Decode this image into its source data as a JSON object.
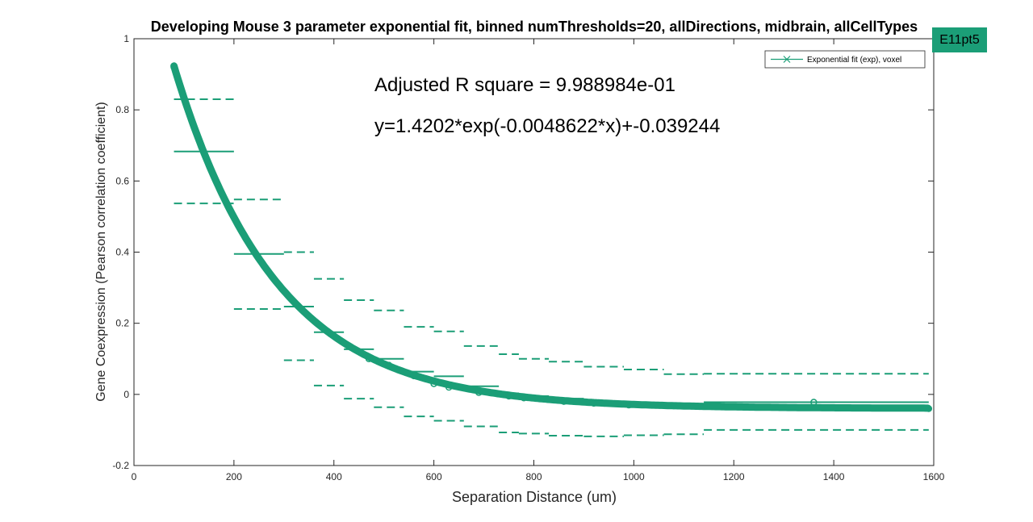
{
  "badge": {
    "label": "E11pt5",
    "color": "#1b9e77"
  },
  "chart_data": {
    "type": "line",
    "title": "Developing Mouse 3 parameter exponential fit, binned numThresholds=20, allDirections, midbrain, allCellTypes",
    "xlabel": "Separation Distance (um)",
    "ylabel": "Gene Coexpression (Pearson correlation coefficient)",
    "xlim": [
      0,
      1600
    ],
    "ylim": [
      -0.2,
      1
    ],
    "xticks": [
      0,
      200,
      400,
      600,
      800,
      1000,
      1200,
      1400,
      1600
    ],
    "yticks": [
      -0.2,
      0,
      0.2,
      0.4,
      0.6,
      0.8,
      1
    ],
    "grid": false,
    "legend": {
      "position": "top-right",
      "entries": [
        "Exponential fit (exp), voxel"
      ]
    },
    "annotations": [
      "Adjusted R square = 9.988984e-01",
      "y=1.4202*exp(-0.0048622*x)+-0.039244"
    ],
    "color": "#1b9e77",
    "fit": {
      "name": "Exponential fit (exp), voxel",
      "a": 1.4202,
      "b": -0.0048622,
      "c": -0.039244,
      "x_range": [
        80,
        1590
      ]
    },
    "bins": [
      {
        "x0": 80,
        "x1": 200,
        "mean": 0.683,
        "upper": 0.83,
        "lower": 0.537
      },
      {
        "x0": 200,
        "x1": 300,
        "mean": 0.395,
        "upper": 0.548,
        "lower": 0.24
      },
      {
        "x0": 300,
        "x1": 360,
        "mean": 0.247,
        "upper": 0.4,
        "lower": 0.096
      },
      {
        "x0": 360,
        "x1": 420,
        "mean": 0.175,
        "upper": 0.325,
        "lower": 0.025
      },
      {
        "x0": 420,
        "x1": 480,
        "mean": 0.127,
        "upper": 0.265,
        "lower": -0.012
      },
      {
        "x0": 480,
        "x1": 540,
        "mean": 0.1,
        "upper": 0.236,
        "lower": -0.036
      },
      {
        "x0": 540,
        "x1": 600,
        "mean": 0.064,
        "upper": 0.19,
        "lower": -0.062
      },
      {
        "x0": 600,
        "x1": 660,
        "mean": 0.051,
        "upper": 0.177,
        "lower": -0.074
      },
      {
        "x0": 660,
        "x1": 730,
        "mean": 0.023,
        "upper": 0.136,
        "lower": -0.09
      },
      {
        "x0": 730,
        "x1": 770,
        "mean": 0.003,
        "upper": 0.113,
        "lower": -0.107
      },
      {
        "x0": 770,
        "x1": 830,
        "mean": -0.005,
        "upper": 0.1,
        "lower": -0.11
      },
      {
        "x0": 830,
        "x1": 900,
        "mean": -0.012,
        "upper": 0.092,
        "lower": -0.116
      },
      {
        "x0": 900,
        "x1": 980,
        "mean": -0.02,
        "upper": 0.078,
        "lower": -0.118
      },
      {
        "x0": 980,
        "x1": 1060,
        "mean": -0.026,
        "upper": 0.07,
        "lower": -0.115
      },
      {
        "x0": 1060,
        "x1": 1140,
        "mean": -0.03,
        "upper": 0.057,
        "lower": -0.112
      },
      {
        "x0": 1140,
        "x1": 1590,
        "mean": -0.022,
        "upper": 0.058,
        "lower": -0.1
      }
    ],
    "points": [
      [
        80,
        0.92
      ],
      [
        470,
        0.1
      ],
      [
        510,
        0.082
      ],
      [
        560,
        0.052
      ],
      [
        600,
        0.03
      ],
      [
        630,
        0.02
      ],
      [
        690,
        0.005
      ],
      [
        750,
        -0.005
      ],
      [
        780,
        -0.01
      ],
      [
        860,
        -0.02
      ],
      [
        920,
        -0.025
      ],
      [
        990,
        -0.03
      ],
      [
        1080,
        -0.032
      ],
      [
        1360,
        -0.022
      ],
      [
        1590,
        -0.04
      ]
    ]
  }
}
